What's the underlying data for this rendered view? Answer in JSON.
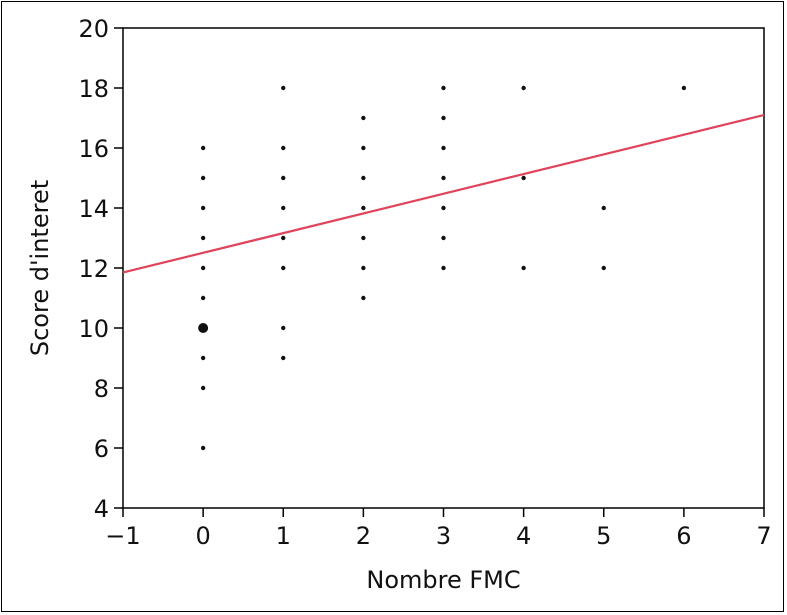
{
  "chart_data": {
    "type": "scatter",
    "title": "",
    "xlabel": "Nombre FMC",
    "ylabel": "Score d'interet",
    "xlim": [
      -1,
      7
    ],
    "ylim": [
      4,
      20
    ],
    "xticks": [
      -1,
      0,
      1,
      2,
      3,
      4,
      5,
      6,
      7
    ],
    "yticks": [
      4,
      6,
      8,
      10,
      12,
      14,
      16,
      18,
      20
    ],
    "xtick_labels": [
      "−1",
      "0",
      "1",
      "2",
      "3",
      "4",
      "5",
      "6",
      "7"
    ],
    "ytick_labels": [
      "4",
      "6",
      "8",
      "10",
      "12",
      "14",
      "16",
      "18",
      "20"
    ],
    "grid": false,
    "points": [
      {
        "x": 0,
        "y": 16
      },
      {
        "x": 0,
        "y": 15
      },
      {
        "x": 0,
        "y": 14
      },
      {
        "x": 0,
        "y": 13
      },
      {
        "x": 0,
        "y": 12
      },
      {
        "x": 0,
        "y": 11
      },
      {
        "x": 0,
        "y": 10,
        "large": true
      },
      {
        "x": 0,
        "y": 9
      },
      {
        "x": 0,
        "y": 8
      },
      {
        "x": 0,
        "y": 6
      },
      {
        "x": 1,
        "y": 18
      },
      {
        "x": 1,
        "y": 16
      },
      {
        "x": 1,
        "y": 15
      },
      {
        "x": 1,
        "y": 14
      },
      {
        "x": 1,
        "y": 13
      },
      {
        "x": 1,
        "y": 12
      },
      {
        "x": 1,
        "y": 10
      },
      {
        "x": 1,
        "y": 9
      },
      {
        "x": 2,
        "y": 17
      },
      {
        "x": 2,
        "y": 16
      },
      {
        "x": 2,
        "y": 15
      },
      {
        "x": 2,
        "y": 14
      },
      {
        "x": 2,
        "y": 13
      },
      {
        "x": 2,
        "y": 12
      },
      {
        "x": 2,
        "y": 11
      },
      {
        "x": 3,
        "y": 18
      },
      {
        "x": 3,
        "y": 17
      },
      {
        "x": 3,
        "y": 16
      },
      {
        "x": 3,
        "y": 15
      },
      {
        "x": 3,
        "y": 14
      },
      {
        "x": 3,
        "y": 13
      },
      {
        "x": 3,
        "y": 12
      },
      {
        "x": 4,
        "y": 18
      },
      {
        "x": 4,
        "y": 15
      },
      {
        "x": 4,
        "y": 12
      },
      {
        "x": 5,
        "y": 14
      },
      {
        "x": 5,
        "y": 12
      },
      {
        "x": 6,
        "y": 18
      }
    ],
    "fit_line": {
      "x": [
        -1,
        7
      ],
      "y": [
        11.85,
        17.1
      ],
      "color": "#e0435a"
    },
    "point_color": "#111111"
  }
}
